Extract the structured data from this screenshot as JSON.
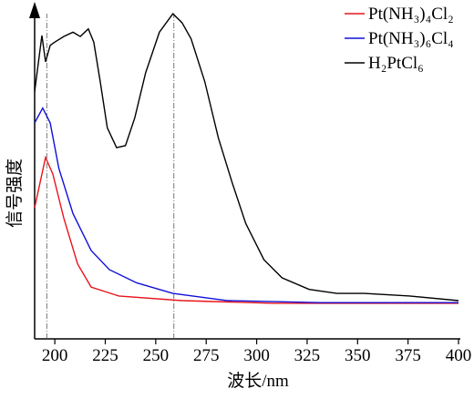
{
  "chart_data": {
    "type": "line",
    "x_label": "波长/nm",
    "y_label": "信号强度",
    "xlim": [
      190,
      400
    ],
    "ylim": [
      0,
      100
    ],
    "xticks": [
      200,
      225,
      250,
      275,
      300,
      325,
      350,
      375,
      400
    ],
    "reference_lines": [
      196,
      259
    ],
    "legend": "upper right",
    "series": [
      {
        "name": "Pt(NH₃)₄Cl₂",
        "color": "#e8141c",
        "x": [
          190,
          195.4,
          199,
          204.5,
          211.3,
          218,
          231.7,
          263,
          308,
          400
        ],
        "values": [
          39.8,
          55,
          50,
          36.5,
          22.7,
          15.7,
          13,
          11.6,
          10.8,
          10.8
        ]
      },
      {
        "name": "Pt(NH₃)₆Cl₄",
        "color": "#1010d8",
        "x": [
          190,
          194,
          197.7,
          202,
          209,
          218,
          227,
          240.5,
          258.5,
          285.6,
          330.8,
          400
        ],
        "values": [
          65.5,
          70,
          65.5,
          51.7,
          38,
          26.8,
          21,
          17,
          13.8,
          11.6,
          11,
          11
        ]
      },
      {
        "name": "H₂PtCl₆",
        "color": "#000000",
        "x": [
          190,
          193.6,
          195.4,
          197.7,
          200,
          204.5,
          209,
          212.6,
          216.6,
          219.3,
          222.5,
          226,
          230.6,
          235,
          239.6,
          245,
          251.8,
          258.5,
          263,
          267.5,
          274.3,
          281,
          287.8,
          294.6,
          303.6,
          312.6,
          326,
          339.7,
          353.3,
          375.8,
          400
        ],
        "values": [
          75,
          92,
          84,
          89,
          90,
          91.7,
          93,
          91.7,
          94,
          90,
          78,
          64,
          58,
          58.6,
          67,
          80.7,
          93,
          98.6,
          95.9,
          91,
          78,
          61,
          47.5,
          35,
          24,
          18.5,
          15,
          13.8,
          13.8,
          13,
          11.6
        ]
      }
    ]
  }
}
